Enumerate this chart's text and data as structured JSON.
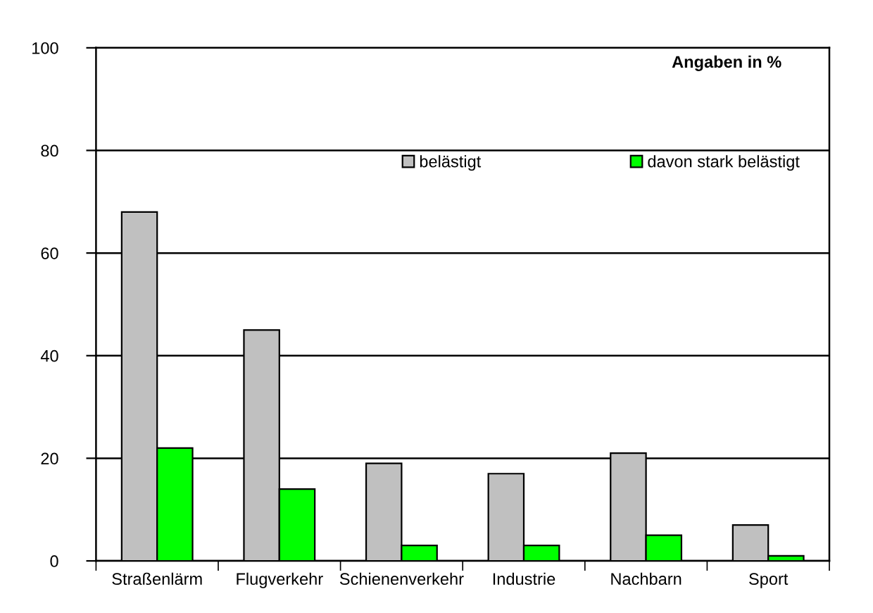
{
  "chart_data": {
    "type": "bar",
    "categories": [
      "Straßenlärm",
      "Flugverkehr",
      "Schienenverkehr",
      "Industrie",
      "Nachbarn",
      "Sport"
    ],
    "series": [
      {
        "name": "belästigt",
        "color": "#c0c0c0",
        "values": [
          68,
          45,
          19,
          17,
          21,
          7
        ]
      },
      {
        "name": "davon stark belästigt",
        "color": "#00ff00",
        "values": [
          22,
          14,
          3,
          3,
          5,
          1
        ]
      }
    ],
    "ylim": [
      0,
      100
    ],
    "yticks": [
      0,
      20,
      40,
      60,
      80,
      100
    ],
    "grid": "y",
    "legend": "top right",
    "annotations": [
      "Angaben in %"
    ]
  }
}
